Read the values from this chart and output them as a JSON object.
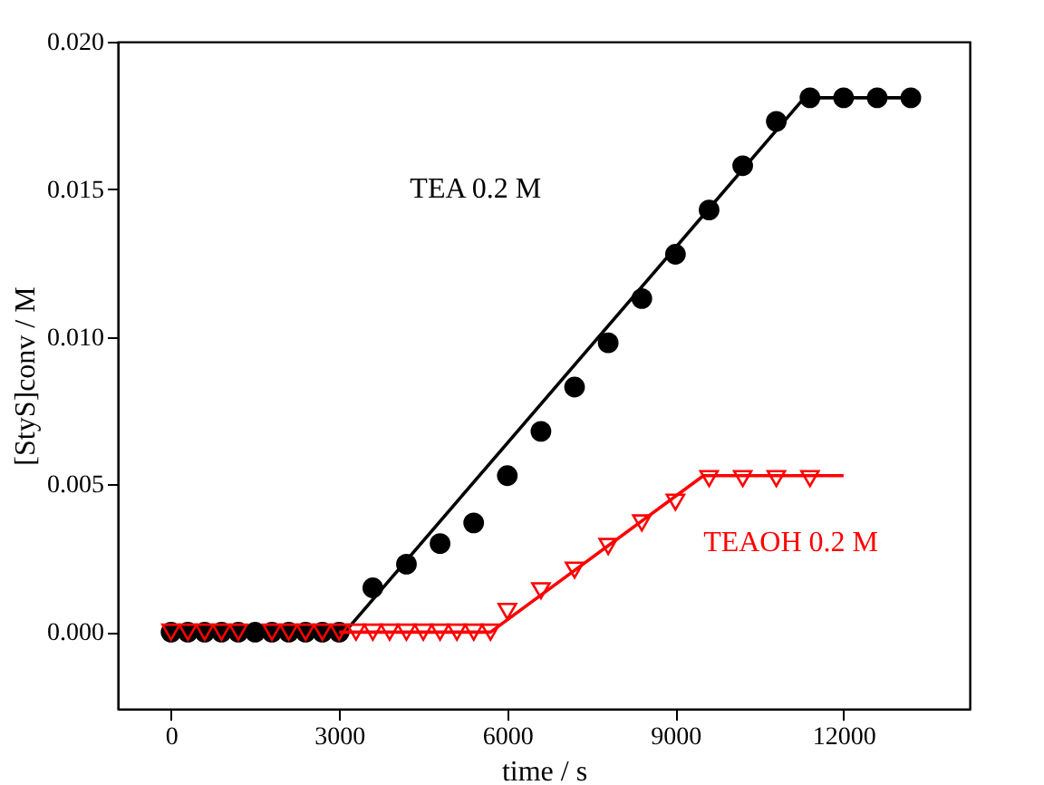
{
  "chart_data": {
    "type": "scatter",
    "xlabel": "time / s",
    "ylabel": "[StyS]conv / M",
    "xlim": [
      -950,
      14250
    ],
    "ylim": [
      -0.0026,
      0.02
    ],
    "xticks": [
      0,
      3000,
      6000,
      9000,
      12000
    ],
    "yticks": [
      {
        "value": 0,
        "label": "0.000"
      },
      {
        "value": 0.005,
        "label": "0.005"
      },
      {
        "value": 0.01,
        "label": "0.010"
      },
      {
        "value": 0.015,
        "label": "0.015"
      },
      {
        "value": 0.02,
        "label": "0.020"
      }
    ],
    "grid": false,
    "series": [
      {
        "marker": "circle",
        "color": "#000000",
        "x": [
          0,
          300,
          600,
          900,
          1200,
          1500,
          1800,
          2100,
          2400,
          2700,
          3000,
          3600,
          4200,
          4800,
          5400,
          6000,
          6600,
          7200,
          7800,
          8400,
          9000,
          9600,
          10200,
          10800,
          11400,
          12000,
          12600,
          13200
        ],
        "values": [
          0,
          0,
          0,
          0,
          0,
          0,
          0,
          0,
          0,
          0,
          0,
          0.0015,
          0.0023,
          0.003,
          0.0037,
          0.0053,
          0.0068,
          0.0083,
          0.0098,
          0.0113,
          0.0128,
          0.0143,
          0.0158,
          0.0173,
          0.0181,
          0.0181,
          0.0181,
          0.0181
        ]
      },
      {
        "type": "line",
        "color": "#000000",
        "x": [
          0,
          3100,
          11300,
          13200
        ],
        "values": [
          0,
          0,
          0.0181,
          0.0181
        ]
      },
      {
        "type": "line",
        "color": "#ff0000",
        "x": [
          3000,
          5700,
          9500,
          12000
        ],
        "values": [
          0,
          0,
          0.0053,
          0.0053
        ]
      },
      {
        "type": "scatter",
        "marker": "triangle",
        "color": "#ff0000",
        "x": [
          0,
          300,
          600,
          900,
          1200,
          1800,
          2100,
          2400,
          2700,
          3000,
          3300,
          3600,
          3900,
          4200,
          4500,
          4800,
          5100,
          5400,
          5700,
          6000,
          6600,
          7200,
          7800,
          8400,
          9000,
          9600,
          10200,
          10800,
          11400
        ],
        "values": [
          0,
          0,
          0,
          0,
          0,
          0,
          0,
          0,
          0,
          0,
          0,
          0,
          0,
          0,
          0,
          0,
          0,
          0,
          0,
          0.0007,
          0.0014,
          0.0021,
          0.0029,
          0.0037,
          0.0044,
          0.0052,
          0.0052,
          0.0052,
          0.0052
        ]
      }
    ],
    "annotations": [
      "TEA 0.2 M",
      "TEAOH 0.2 M"
    ]
  }
}
